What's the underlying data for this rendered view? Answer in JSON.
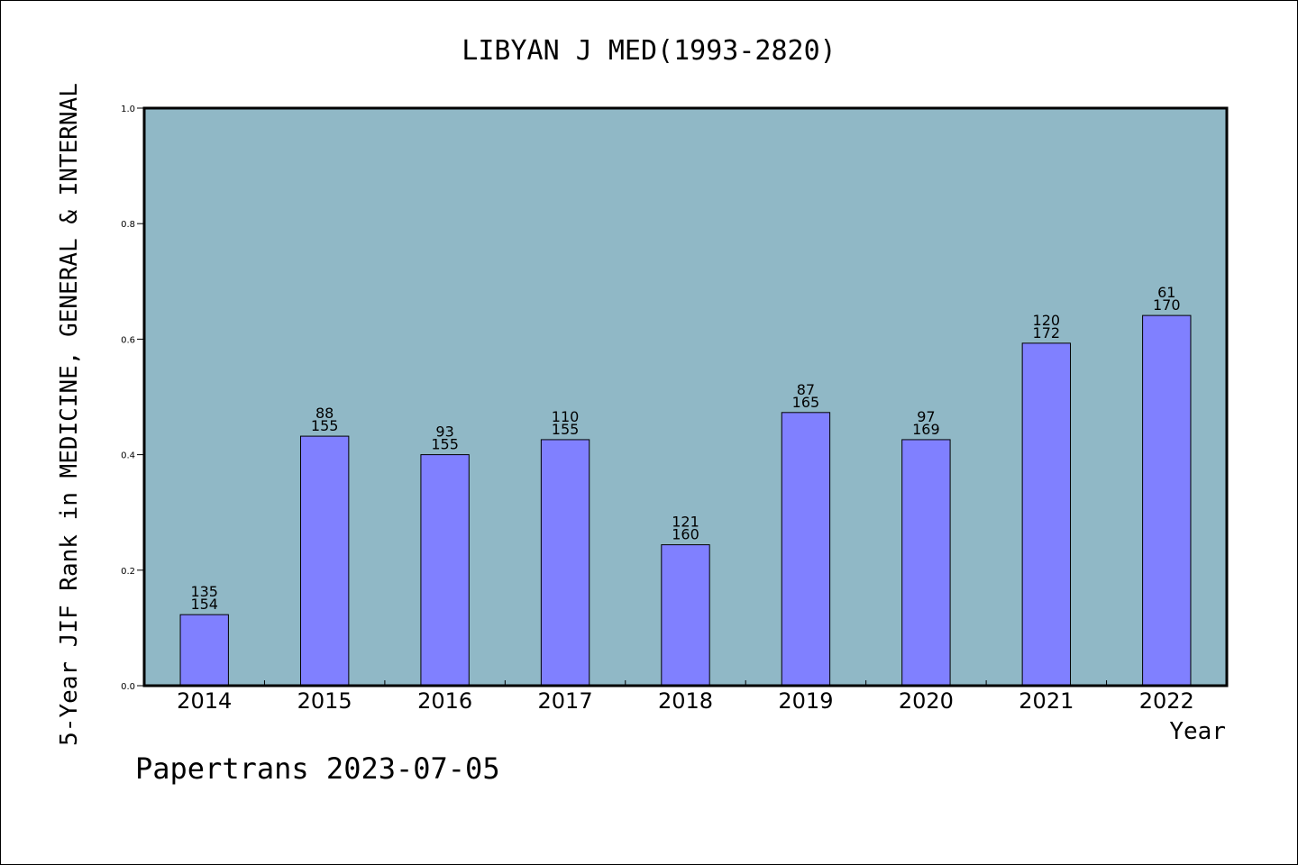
{
  "chart_data": {
    "type": "bar",
    "title": "LIBYAN J MED(1993-2820)",
    "xlabel": "Year",
    "ylabel": "5-Year JIF Rank in MEDICINE, GENERAL & INTERNAL",
    "ylim": [
      0,
      1.0
    ],
    "yticks": [
      "0.0",
      "0.2",
      "0.4",
      "0.6",
      "0.8",
      "1.0"
    ],
    "categories": [
      "2014",
      "2015",
      "2016",
      "2017",
      "2018",
      "2019",
      "2020",
      "2021",
      "2022"
    ],
    "values": [
      0.123,
      0.432,
      0.4,
      0.426,
      0.244,
      0.473,
      0.426,
      0.593,
      0.641
    ],
    "labels_top": [
      "135",
      "88",
      "93",
      "110",
      "121",
      "87",
      "97",
      "120",
      "61"
    ],
    "labels_bottom": [
      "154",
      "155",
      "155",
      "155",
      "160",
      "165",
      "169",
      "172",
      "170"
    ],
    "grid": false,
    "legend": "none",
    "colors": {
      "plot_bg": "#90b8c6",
      "bar": "#8080ff",
      "bar_edge": "#000000"
    }
  },
  "footer": {
    "watermark": "Papertrans 2023-07-05"
  }
}
